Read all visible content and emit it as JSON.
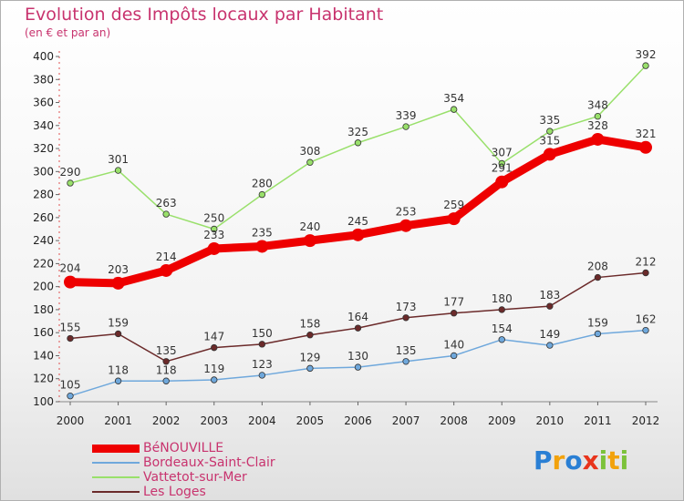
{
  "chart_data": {
    "type": "line",
    "title": "Evolution des Impôts locaux par Habitant",
    "subtitle": "(en € et par an)",
    "x": [
      "2000",
      "2001",
      "2002",
      "2003",
      "2004",
      "2005",
      "2006",
      "2007",
      "2008",
      "2009",
      "2010",
      "2011",
      "2012"
    ],
    "yticks": [
      100,
      120,
      140,
      160,
      180,
      200,
      220,
      240,
      260,
      280,
      300,
      320,
      340,
      360,
      380,
      400
    ],
    "ylim": [
      100,
      400
    ],
    "grid": false,
    "legend_position": "bottom-left",
    "series": [
      {
        "name": "BéNOUVILLE",
        "color": "#ee0000",
        "values": [
          204,
          203,
          214,
          233,
          235,
          240,
          245,
          253,
          259,
          291,
          315,
          328,
          321
        ]
      },
      {
        "name": "Bordeaux-Saint-Clair",
        "color": "#6fa8dc",
        "values": [
          105,
          118,
          118,
          119,
          123,
          129,
          130,
          135,
          140,
          154,
          149,
          159,
          162
        ]
      },
      {
        "name": "Vattetot-sur-Mer",
        "color": "#99e06b",
        "values": [
          290,
          301,
          263,
          250,
          280,
          308,
          325,
          339,
          354,
          307,
          335,
          348,
          392
        ]
      },
      {
        "name": "Les Loges",
        "color": "#6b2a2a",
        "values": [
          155,
          159,
          135,
          147,
          150,
          158,
          164,
          173,
          177,
          180,
          183,
          208,
          212
        ]
      }
    ]
  },
  "logo": {
    "letters": [
      "P",
      "r",
      "o",
      "x",
      "i",
      "t",
      "i"
    ],
    "colors": [
      "#2a7fd4",
      "#f2a20c",
      "#2a7fd4",
      "#e8341c",
      "#7cc23a",
      "#f2a20c",
      "#7cc23a"
    ]
  }
}
